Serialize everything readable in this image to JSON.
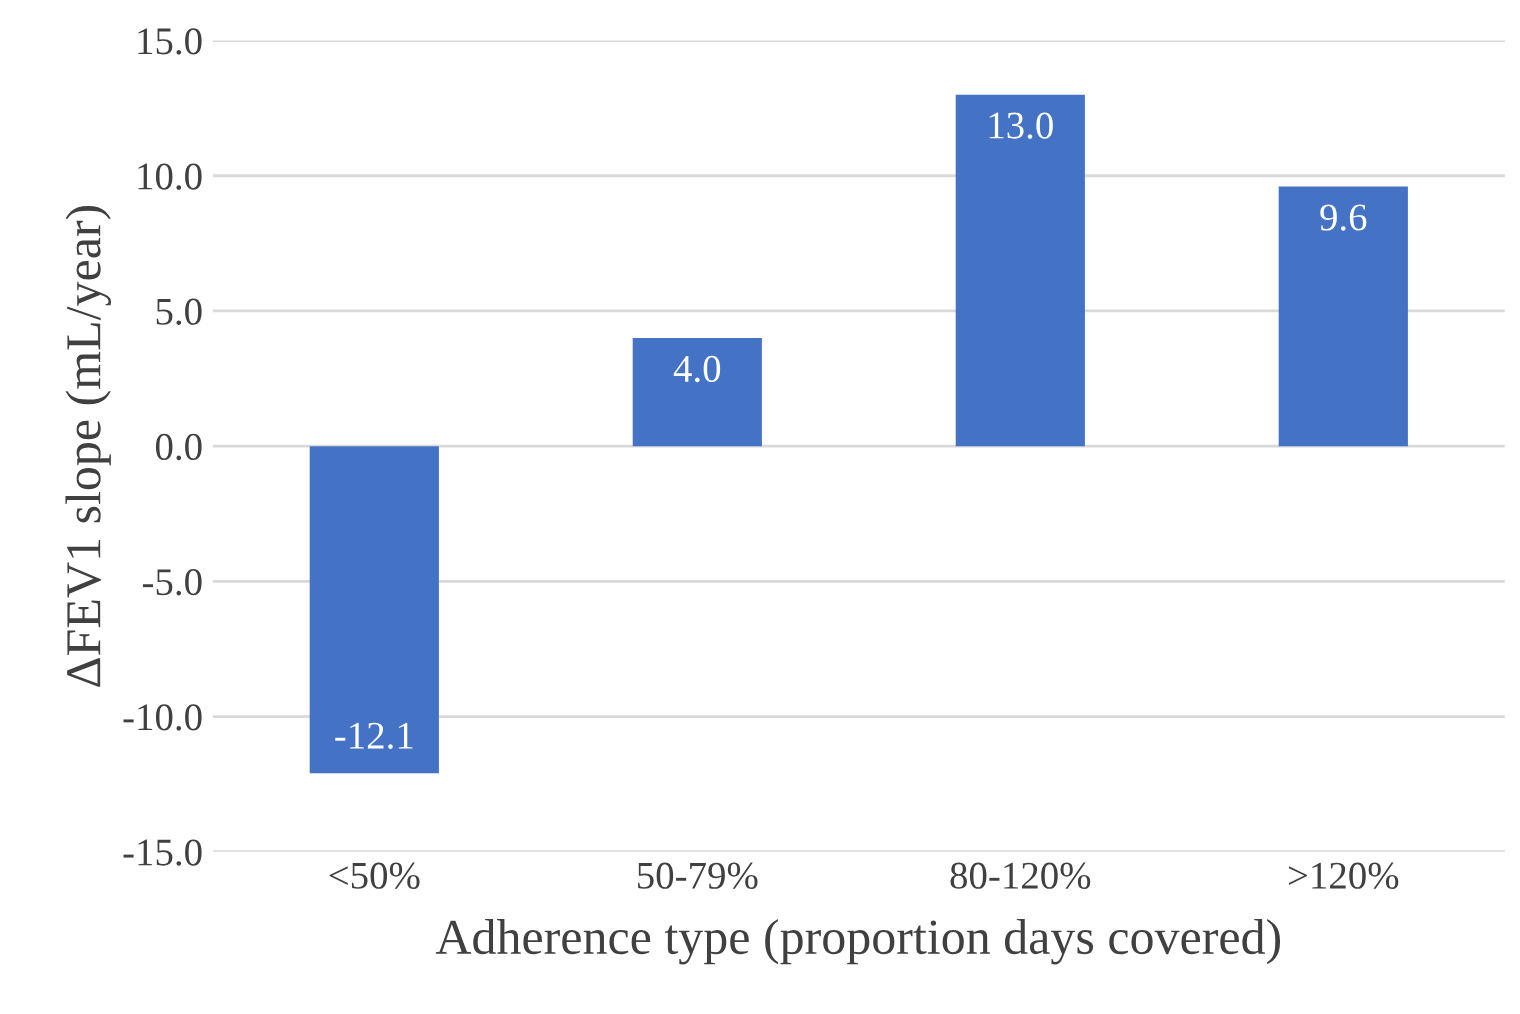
{
  "chart_data": {
    "type": "bar",
    "xlabel": "Adherence type (proportion days covered)",
    "ylabel": "ΔFEV1 slope (mL/year)",
    "categories": [
      "<50%",
      "50-79%",
      "80-120%",
      ">120%"
    ],
    "values": [
      -12.1,
      4.0,
      13.0,
      9.6
    ],
    "value_labels": [
      "-12.1",
      "4.0",
      "13.0",
      "9.6"
    ],
    "color": "#4472c4",
    "ylim": [
      -15,
      15
    ],
    "yticks": [
      {
        "value": -15,
        "label": "-15.0"
      },
      {
        "value": -10,
        "label": "-10.0"
      },
      {
        "value": -5,
        "label": "-5.0"
      },
      {
        "value": 0,
        "label": "0.0"
      },
      {
        "value": 5,
        "label": "5.0"
      },
      {
        "value": 10,
        "label": "10.0"
      },
      {
        "value": 15,
        "label": "15.0"
      }
    ],
    "grid": "y"
  }
}
